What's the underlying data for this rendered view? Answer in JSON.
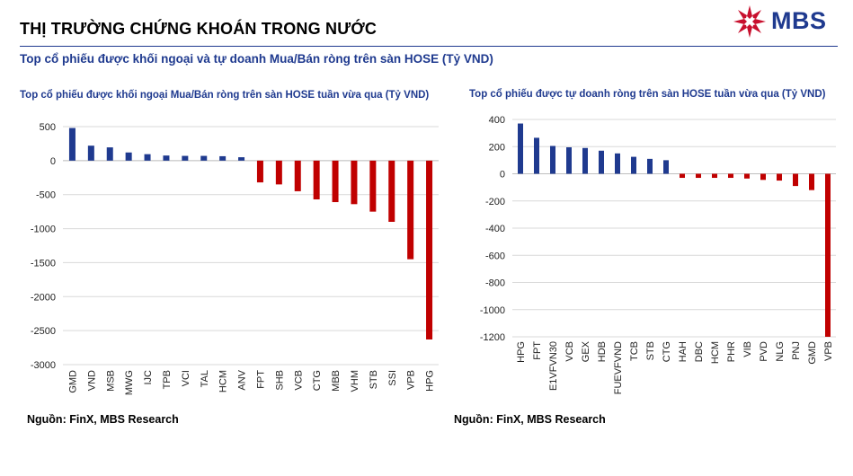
{
  "header": {
    "title": "THỊ TRƯỜNG CHỨNG KHOÁN TRONG NƯỚC",
    "subtitle": "Top cổ phiếu được khối ngoại và tự doanh Mua/Bán ròng trên sàn HOSE (Tỷ VND)"
  },
  "logo": {
    "text": "MBS",
    "color": "#1f3a8f",
    "mark_color": "#c8102e"
  },
  "colors": {
    "positive": "#1f3a8f",
    "negative": "#c00000",
    "grid": "#d9d9d9"
  },
  "chart_data": [
    {
      "type": "bar",
      "title": "Top cổ phiếu được khối ngoại Mua/Bán ròng trên sàn HOSE tuần vừa qua (Tỷ VND)",
      "categories": [
        "GMD",
        "VND",
        "MSB",
        "MWG",
        "IJC",
        "TPB",
        "VCI",
        "TAL",
        "HCM",
        "ANV",
        "FPT",
        "SHB",
        "VCB",
        "CTG",
        "MBB",
        "VHM",
        "STB",
        "SSI",
        "VPB",
        "HPG"
      ],
      "values": [
        480,
        220,
        195,
        120,
        95,
        75,
        70,
        70,
        65,
        50,
        -320,
        -350,
        -450,
        -570,
        -610,
        -640,
        -750,
        -900,
        -1450,
        -2630
      ],
      "ylim": [
        -3000,
        500
      ],
      "yticks": [
        500,
        0,
        -500,
        -1000,
        -1500,
        -2000,
        -2500,
        -3000
      ],
      "grid": true,
      "xlabel": "",
      "ylabel": "",
      "source": "Nguồn: FinX, MBS Research"
    },
    {
      "type": "bar",
      "title": "Top cổ phiếu được tự doanh ròng trên sàn HOSE tuần vừa qua (Tỷ VND)",
      "categories": [
        "HPG",
        "FPT",
        "E1VFVN30",
        "VCB",
        "GEX",
        "HDB",
        "FUEVFVND",
        "TCB",
        "STB",
        "CTG",
        "HAH",
        "DBC",
        "HCM",
        "PHR",
        "VIB",
        "PVD",
        "NLG",
        "PNJ",
        "GMD",
        "VPB"
      ],
      "values": [
        370,
        265,
        205,
        195,
        190,
        170,
        150,
        125,
        110,
        100,
        -30,
        -30,
        -30,
        -30,
        -35,
        -45,
        -50,
        -90,
        -120,
        -1200
      ],
      "ylim": [
        -1200,
        400
      ],
      "yticks": [
        400,
        200,
        0,
        -200,
        -400,
        -600,
        -800,
        -1000,
        -1200
      ],
      "grid": true,
      "xlabel": "",
      "ylabel": "",
      "source": "Nguồn: FinX, MBS Research"
    }
  ]
}
